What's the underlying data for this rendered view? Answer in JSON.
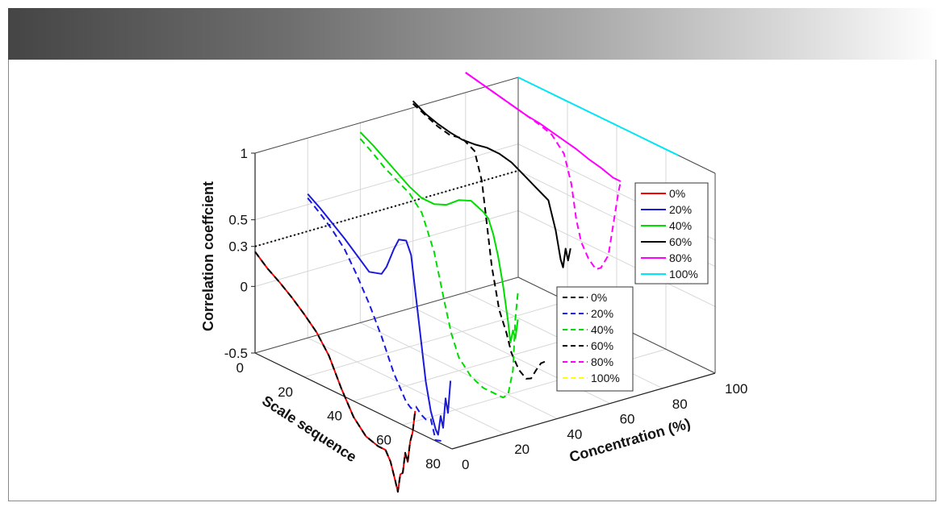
{
  "chart_data": {
    "type": "line",
    "view": "3d-waterfall",
    "xlabel": "Scale sequence",
    "ylabel": "Concentration (%)",
    "zlabel": "Correlation coeffcient",
    "x_ticks": [
      "0",
      "20",
      "40",
      "60",
      "80"
    ],
    "y_ticks": [
      "0",
      "20",
      "40",
      "60",
      "80",
      "100"
    ],
    "z_ticks": [
      "1",
      "0.5",
      "0.3",
      "0",
      "-0.5"
    ],
    "xlim": [
      0,
      80
    ],
    "ylim": [
      0,
      100
    ],
    "zlim": [
      -0.5,
      1
    ],
    "grid": true,
    "threshold": {
      "value": 0.3,
      "style": "dotted",
      "color": "#000000"
    },
    "solid_series": [
      {
        "name": "0%",
        "concentration": 0,
        "color": "#ff0000",
        "x": [
          0,
          5,
          10,
          15,
          20,
          25,
          30,
          35,
          40,
          45,
          50,
          53,
          55,
          57,
          58,
          59,
          60,
          61,
          62,
          63,
          64,
          65
        ],
        "z": [
          0.26,
          0.18,
          0.12,
          0.05,
          -0.03,
          -0.12,
          -0.25,
          -0.45,
          -0.62,
          -0.72,
          -0.75,
          -0.75,
          -0.82,
          -0.95,
          -1.02,
          -0.88,
          -0.86,
          -0.7,
          -0.76,
          -0.6,
          -0.52,
          -0.35
        ]
      },
      {
        "name": "20%",
        "concentration": 20,
        "color": "#1a1adc",
        "x": [
          0,
          5,
          10,
          15,
          20,
          25,
          30,
          32,
          35,
          37,
          40,
          42,
          44,
          46,
          48,
          50,
          52,
          53,
          54,
          55,
          56,
          57,
          58
        ],
        "z": [
          0.58,
          0.52,
          0.45,
          0.38,
          0.3,
          0.22,
          0.25,
          0.32,
          0.48,
          0.57,
          0.59,
          0.5,
          0.2,
          -0.1,
          -0.4,
          -0.6,
          -0.72,
          -0.75,
          -0.6,
          -0.68,
          -0.45,
          -0.55,
          -0.3
        ]
      },
      {
        "name": "40%",
        "concentration": 40,
        "color": "#00dc00",
        "x": [
          0,
          5,
          10,
          15,
          20,
          25,
          30,
          35,
          40,
          45,
          50,
          52,
          54,
          56,
          58,
          60,
          61,
          62,
          63,
          64
        ],
        "z": [
          0.93,
          0.88,
          0.82,
          0.76,
          0.7,
          0.66,
          0.66,
          0.7,
          0.78,
          0.82,
          0.78,
          0.75,
          0.65,
          0.5,
          0.3,
          0.05,
          -0.1,
          0.0,
          -0.05,
          0.1
        ]
      },
      {
        "name": "60%",
        "concentration": 60,
        "color": "#000000",
        "x": [
          0,
          5,
          10,
          15,
          20,
          25,
          30,
          35,
          40,
          45,
          50,
          55,
          58,
          60,
          61,
          62,
          63,
          64
        ],
        "z": [
          1.05,
          1.0,
          0.97,
          0.95,
          0.94,
          0.95,
          0.97,
          0.97,
          0.95,
          0.9,
          0.85,
          0.8,
          0.6,
          0.4,
          0.35,
          0.5,
          0.42,
          0.52
        ]
      },
      {
        "name": "80%",
        "concentration": 80,
        "color": "#ff00ff",
        "x": [
          0,
          5,
          10,
          15,
          20,
          25,
          30,
          35,
          40,
          45,
          50,
          55,
          60,
          63
        ],
        "z": [
          1.15,
          1.13,
          1.11,
          1.09,
          1.07,
          1.05,
          1.04,
          1.02,
          1.0,
          0.98,
          0.95,
          0.93,
          0.9,
          0.9
        ]
      },
      {
        "name": "100%",
        "concentration": 100,
        "color": "#00e5ff",
        "x": [
          0,
          10,
          20,
          30,
          40,
          50,
          60,
          65
        ],
        "z": [
          1.0,
          1.0,
          1.0,
          1.0,
          1.0,
          1.0,
          1.0,
          1.0
        ]
      }
    ],
    "dashed_series": [
      {
        "name": "0%",
        "concentration": 0,
        "color": "#000000",
        "x": [
          0,
          5,
          10,
          15,
          20,
          25,
          30,
          35,
          40,
          45,
          50,
          53,
          55,
          57,
          58,
          59,
          60,
          61,
          62,
          63,
          64,
          65
        ],
        "z": [
          0.26,
          0.18,
          0.12,
          0.05,
          -0.03,
          -0.12,
          -0.25,
          -0.45,
          -0.62,
          -0.72,
          -0.75,
          -0.75,
          -0.82,
          -0.95,
          -1.02,
          -0.88,
          -0.86,
          -0.7,
          -0.76,
          -0.6,
          -0.52,
          -0.35
        ]
      },
      {
        "name": "20%",
        "concentration": 20,
        "color": "#1a1adc",
        "x": [
          0,
          5,
          10,
          15,
          20,
          25,
          30,
          35,
          40,
          42,
          44,
          46,
          48,
          50,
          52,
          55
        ],
        "z": [
          0.55,
          0.48,
          0.4,
          0.3,
          0.15,
          -0.02,
          -0.22,
          -0.45,
          -0.62,
          -0.65,
          -0.62,
          -0.66,
          -0.68,
          -0.66,
          -0.8,
          -0.78
        ]
      },
      {
        "name": "40%",
        "concentration": 40,
        "color": "#00dc00",
        "x": [
          0,
          5,
          10,
          15,
          20,
          25,
          30,
          35,
          37,
          40,
          45,
          50,
          55,
          58,
          60,
          62,
          63,
          64
        ],
        "z": [
          0.88,
          0.82,
          0.75,
          0.7,
          0.65,
          0.55,
          0.3,
          -0.1,
          -0.25,
          -0.4,
          -0.5,
          -0.54,
          -0.54,
          -0.54,
          -0.5,
          -0.3,
          0.1,
          0.3
        ]
      },
      {
        "name": "60%",
        "concentration": 60,
        "color": "#000000",
        "x": [
          0,
          5,
          10,
          15,
          20,
          25,
          28,
          30,
          32,
          35,
          38,
          40,
          43,
          46,
          48,
          50,
          52,
          55
        ],
        "z": [
          1.03,
          0.99,
          0.95,
          0.93,
          0.95,
          0.9,
          0.7,
          0.4,
          0.1,
          -0.2,
          -0.35,
          -0.48,
          -0.58,
          -0.62,
          -0.6,
          -0.52,
          -0.45,
          -0.4
        ]
      },
      {
        "name": "80%",
        "concentration": 80,
        "color": "#ff00ff",
        "x": [
          0,
          10,
          20,
          30,
          35,
          40,
          43,
          45,
          47,
          50,
          53,
          55,
          58,
          60,
          62,
          63
        ],
        "z": [
          1.15,
          1.11,
          1.07,
          1.03,
          1.0,
          0.9,
          0.7,
          0.45,
          0.3,
          0.2,
          0.15,
          0.18,
          0.3,
          0.55,
          0.8,
          0.9
        ]
      },
      {
        "name": "100%",
        "concentration": 100,
        "color": "#ffff00",
        "x": [
          0,
          10,
          20,
          30,
          40,
          50,
          60,
          65
        ],
        "z": [
          1.0,
          1.0,
          1.0,
          1.0,
          1.0,
          1.0,
          1.0,
          1.0
        ]
      }
    ],
    "legends": [
      {
        "placement": "right",
        "style": "solid",
        "entries": [
          "0%",
          "20%",
          "40%",
          "60%",
          "80%",
          "100%"
        ]
      },
      {
        "placement": "lower-right",
        "style": "dashed",
        "entries": [
          "0%",
          "20%",
          "40%",
          "60%",
          "80%",
          "100%"
        ]
      }
    ]
  }
}
